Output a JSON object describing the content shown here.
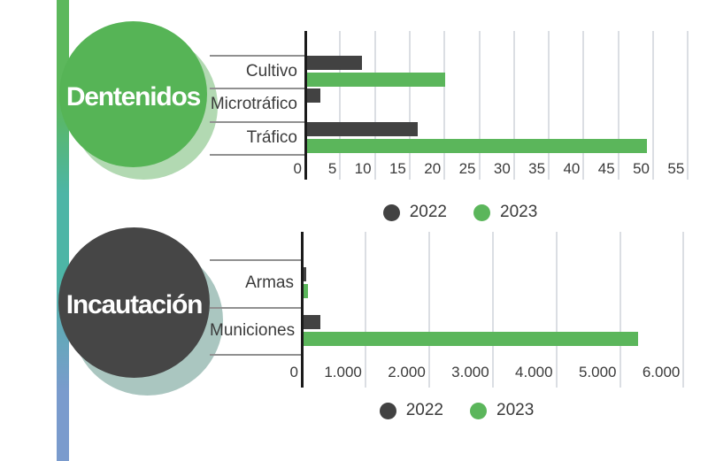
{
  "stripe": {
    "colors": [
      "#5cb85c",
      "#4db5a6",
      "#7a9bcd"
    ]
  },
  "badges": [
    {
      "fill": "#56b456",
      "shadow": "#b2d9b2",
      "text_color": "#ffffff"
    },
    {
      "fill": "#464646",
      "shadow": "#aac6c0",
      "text_color": "#ffffff"
    }
  ],
  "colors": {
    "bar_2022": "#424242",
    "bar_2023": "#5bb65b",
    "gridline": "#dbdee3",
    "axis": "#1b1b1b",
    "row_line": "#909090",
    "text": "#3a3a3a"
  },
  "chart_data": [
    {
      "type": "bar",
      "orientation": "horizontal",
      "title": "Dentenidos",
      "categories": [
        "Cultivo",
        "Microtráfico",
        "Tráfico"
      ],
      "series": [
        {
          "name": "2022",
          "values": [
            8,
            2,
            16
          ]
        },
        {
          "name": "2023",
          "values": [
            20,
            0,
            49
          ]
        }
      ],
      "xlim": [
        0,
        55
      ],
      "tick_step": 5,
      "tick_labels": [
        "0",
        "5",
        "10",
        "15",
        "20",
        "25",
        "30",
        "35",
        "40",
        "45",
        "50",
        "55"
      ],
      "xlabel": "",
      "ylabel": "",
      "grid": true,
      "legend": [
        "2022",
        "2023"
      ],
      "legend_position": "bottom-center"
    },
    {
      "type": "bar",
      "orientation": "horizontal",
      "title": "Incautación",
      "categories": [
        "Armas",
        "Municiones"
      ],
      "series": [
        {
          "name": "2022",
          "values": [
            50,
            280
          ]
        },
        {
          "name": "2023",
          "values": [
            80,
            5270
          ]
        }
      ],
      "xlim": [
        0,
        6000
      ],
      "tick_step": 1000,
      "tick_labels": [
        "0",
        "1.000",
        "2.000",
        "3.000",
        "4.000",
        "5.000",
        "6.000"
      ],
      "xlabel": "",
      "ylabel": "",
      "grid": true,
      "legend": [
        "2022",
        "2023"
      ],
      "legend_position": "bottom-center"
    }
  ]
}
